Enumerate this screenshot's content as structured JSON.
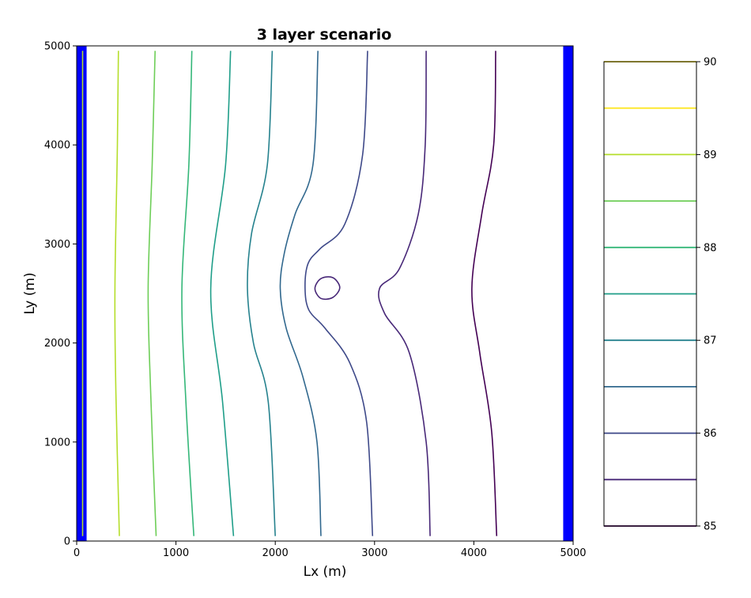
{
  "chart_data": {
    "type": "contour",
    "title": "3 layer scenario",
    "xlabel": "Lx (m)",
    "ylabel": "Ly (m)",
    "xlim": [
      0,
      5000
    ],
    "ylim": [
      0,
      5000
    ],
    "xticks": [
      "0",
      "1000",
      "2000",
      "3000",
      "4000",
      "5000"
    ],
    "yticks": [
      "0",
      "1000",
      "2000",
      "3000",
      "4000",
      "5000"
    ],
    "boundary_color": "#0000ff",
    "boundary_cells": [
      {
        "x0": 0,
        "x1": 100
      },
      {
        "x0": 4900,
        "x1": 5000
      }
    ],
    "colorbar": {
      "min": 85,
      "max": 90,
      "ticks": [
        "85",
        "86",
        "87",
        "88",
        "89",
        "90"
      ],
      "levels": [
        85.0,
        85.5,
        86.0,
        86.5,
        87.0,
        87.5,
        88.0,
        88.5,
        89.0,
        89.5,
        90.0
      ],
      "colors": [
        "#440154",
        "#482878",
        "#3e4989",
        "#31688e",
        "#26828e",
        "#1f9e89",
        "#35b779",
        "#6ece58",
        "#b5de2b",
        "#fde725",
        "#fde725"
      ]
    },
    "contours": [
      {
        "level": 89.5,
        "color": "#b5de2b",
        "points": [
          [
            60,
            4950
          ],
          [
            60,
            2550
          ],
          [
            60,
            50
          ]
        ]
      },
      {
        "level": 89.0,
        "color": "#b5de2b",
        "points": [
          [
            420,
            4950
          ],
          [
            410,
            4000
          ],
          [
            385,
            2550
          ],
          [
            395,
            1500
          ],
          [
            430,
            50
          ]
        ]
      },
      {
        "level": 88.5,
        "color": "#6ece58",
        "points": [
          [
            790,
            4950
          ],
          [
            760,
            3800
          ],
          [
            720,
            2550
          ],
          [
            745,
            1500
          ],
          [
            800,
            50
          ]
        ]
      },
      {
        "level": 88.0,
        "color": "#35b779",
        "points": [
          [
            1160,
            4950
          ],
          [
            1130,
            3800
          ],
          [
            1060,
            2550
          ],
          [
            1100,
            1400
          ],
          [
            1180,
            50
          ]
        ]
      },
      {
        "level": 87.5,
        "color": "#1f9e89",
        "points": [
          [
            1550,
            4950
          ],
          [
            1500,
            3800
          ],
          [
            1350,
            2550
          ],
          [
            1470,
            1400
          ],
          [
            1580,
            50
          ]
        ]
      },
      {
        "level": 87.0,
        "color": "#26828e",
        "points": [
          [
            1970,
            4950
          ],
          [
            1920,
            3800
          ],
          [
            1760,
            3100
          ],
          [
            1720,
            2550
          ],
          [
            1780,
            2000
          ],
          [
            1930,
            1400
          ],
          [
            2000,
            50
          ]
        ]
      },
      {
        "level": 86.5,
        "color": "#31688e",
        "points": [
          [
            2430,
            4950
          ],
          [
            2380,
            3800
          ],
          [
            2200,
            3300
          ],
          [
            2090,
            2900
          ],
          [
            2050,
            2550
          ],
          [
            2110,
            2150
          ],
          [
            2280,
            1650
          ],
          [
            2420,
            1000
          ],
          [
            2460,
            50
          ]
        ]
      },
      {
        "level": 86.0,
        "color": "#3e4989",
        "points": [
          [
            2930,
            4950
          ],
          [
            2880,
            3900
          ],
          [
            2700,
            3200
          ],
          [
            2450,
            2950
          ],
          [
            2330,
            2800
          ],
          [
            2300,
            2550
          ],
          [
            2340,
            2330
          ],
          [
            2500,
            2150
          ],
          [
            2750,
            1800
          ],
          [
            2920,
            1200
          ],
          [
            2980,
            50
          ]
        ]
      },
      {
        "level": 85.5,
        "color": "#482878",
        "points": [
          [
            3520,
            4950
          ],
          [
            3510,
            4000
          ],
          [
            3440,
            3300
          ],
          [
            3250,
            2750
          ],
          [
            3050,
            2550
          ],
          [
            3100,
            2300
          ],
          [
            3350,
            1900
          ],
          [
            3520,
            1000
          ],
          [
            3560,
            50
          ]
        ]
      },
      {
        "level": 85.0,
        "color": "#440154",
        "points": [
          [
            4220,
            4950
          ],
          [
            4200,
            4000
          ],
          [
            4080,
            3300
          ],
          [
            3980,
            2550
          ],
          [
            4060,
            1900
          ],
          [
            4180,
            1100
          ],
          [
            4230,
            50
          ]
        ]
      },
      {
        "level": 85.5,
        "color": "#482878",
        "closed": true,
        "points": [
          [
            2460,
            2650
          ],
          [
            2580,
            2660
          ],
          [
            2650,
            2560
          ],
          [
            2580,
            2460
          ],
          [
            2460,
            2450
          ],
          [
            2400,
            2550
          ]
        ]
      }
    ]
  }
}
